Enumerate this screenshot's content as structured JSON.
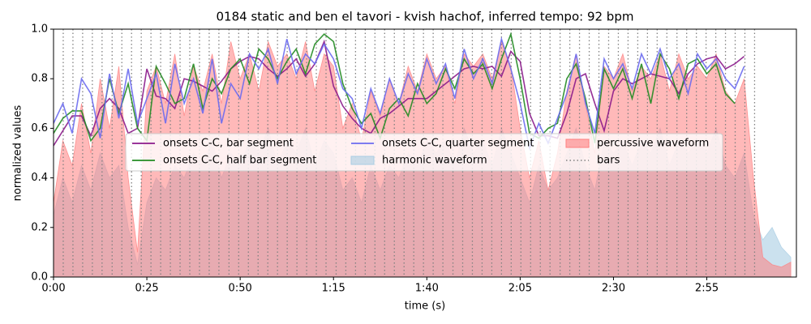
{
  "chart_data": {
    "type": "line",
    "title": "0184 static and ben el tavori - kvish hachof, inferred tempo: 92 bpm",
    "xlabel": "time (s)",
    "ylabel": "normalized values",
    "xlim": [
      0,
      199
    ],
    "ylim": [
      0,
      1
    ],
    "xticks": [
      {
        "value": 0,
        "label": "0:00"
      },
      {
        "value": 25,
        "label": "0:25"
      },
      {
        "value": 50,
        "label": "0:50"
      },
      {
        "value": 75,
        "label": "1:15"
      },
      {
        "value": 100,
        "label": "1:40"
      },
      {
        "value": 125,
        "label": "2:05"
      },
      {
        "value": 150,
        "label": "2:30"
      },
      {
        "value": 175,
        "label": "2:55"
      }
    ],
    "yticks": [
      {
        "value": 0,
        "label": "0.0"
      },
      {
        "value": 0.2,
        "label": "0.2"
      },
      {
        "value": 0.4,
        "label": "0.4"
      },
      {
        "value": 0.6,
        "label": "0.6"
      },
      {
        "value": 0.8,
        "label": "0.8"
      },
      {
        "value": 1,
        "label": "1.0"
      }
    ],
    "legend": "center",
    "x": [
      0,
      2.5,
      5,
      7.5,
      10,
      12.5,
      15,
      17.5,
      20,
      22.5,
      25,
      27.5,
      30,
      32.5,
      35,
      37.5,
      40,
      42.5,
      45,
      47.5,
      50,
      52.5,
      55,
      57.5,
      60,
      62.5,
      65,
      67.5,
      70,
      72.5,
      75,
      77.5,
      80,
      82.5,
      85,
      87.5,
      90,
      92.5,
      95,
      97.5,
      100,
      102.5,
      105,
      107.5,
      110,
      112.5,
      115,
      117.5,
      120,
      122.5,
      125,
      127.5,
      130,
      132.5,
      135,
      137.5,
      140,
      142.5,
      145,
      147.5,
      150,
      152.5,
      155,
      157.5,
      160,
      162.5,
      165,
      167.5,
      170,
      172.5,
      175,
      177.5,
      180,
      182.5,
      185,
      187.5,
      190,
      192.5,
      195,
      197.5
    ],
    "series": [
      {
        "name": "onsets C-C, bar segment",
        "color": "#8b1a8b",
        "style": "line",
        "values": [
          0.53,
          0.59,
          0.65,
          0.65,
          0.57,
          0.68,
          0.72,
          0.68,
          0.58,
          0.6,
          0.84,
          0.73,
          0.72,
          0.68,
          0.8,
          0.79,
          0.77,
          0.75,
          0.79,
          0.84,
          0.87,
          0.89,
          0.88,
          0.84,
          0.81,
          0.84,
          0.88,
          0.81,
          0.86,
          0.95,
          0.77,
          0.69,
          0.64,
          0.6,
          0.58,
          0.64,
          0.66,
          0.69,
          0.72,
          0.72,
          0.72,
          0.75,
          0.78,
          0.81,
          0.84,
          0.85,
          0.84,
          0.85,
          0.81,
          0.91,
          0.87,
          0.66,
          0.57,
          0.57,
          0.56,
          0.66,
          0.8,
          0.82,
          0.7,
          0.59,
          0.75,
          0.8,
          0.78,
          0.8,
          0.82,
          0.81,
          0.8,
          0.74,
          0.82,
          0.86,
          0.88,
          0.89,
          0.84,
          0.86,
          0.89,
          null,
          null,
          null,
          null,
          null
        ]
      },
      {
        "name": "onsets C-C, half bar segment",
        "color": "#228b22",
        "style": "line",
        "values": [
          0.58,
          0.64,
          0.67,
          0.67,
          0.55,
          0.6,
          0.8,
          0.66,
          0.78,
          0.6,
          0.55,
          0.85,
          0.78,
          0.7,
          0.72,
          0.86,
          0.68,
          0.8,
          0.74,
          0.84,
          0.88,
          0.78,
          0.92,
          0.88,
          0.8,
          0.87,
          0.92,
          0.82,
          0.94,
          0.98,
          0.95,
          0.78,
          0.68,
          0.62,
          0.66,
          0.56,
          0.68,
          0.72,
          0.65,
          0.78,
          0.7,
          0.74,
          0.84,
          0.76,
          0.88,
          0.82,
          0.86,
          0.76,
          0.88,
          0.98,
          0.8,
          0.58,
          0.56,
          0.6,
          0.62,
          0.8,
          0.86,
          0.72,
          0.54,
          0.84,
          0.76,
          0.84,
          0.72,
          0.86,
          0.7,
          0.9,
          0.84,
          0.72,
          0.86,
          0.88,
          0.82,
          0.86,
          0.74,
          0.7,
          null,
          null,
          null,
          null,
          null,
          null
        ]
      },
      {
        "name": "onsets C-C, quarter segment",
        "color": "#6b6bef",
        "style": "line",
        "values": [
          0.62,
          0.7,
          0.58,
          0.8,
          0.74,
          0.56,
          0.82,
          0.64,
          0.84,
          0.62,
          0.72,
          0.82,
          0.62,
          0.86,
          0.7,
          0.8,
          0.66,
          0.88,
          0.62,
          0.78,
          0.72,
          0.9,
          0.84,
          0.92,
          0.78,
          0.96,
          0.82,
          0.9,
          0.86,
          0.94,
          0.88,
          0.76,
          0.72,
          0.6,
          0.76,
          0.66,
          0.8,
          0.7,
          0.82,
          0.74,
          0.88,
          0.78,
          0.86,
          0.72,
          0.92,
          0.8,
          0.88,
          0.78,
          0.96,
          0.84,
          0.7,
          0.52,
          0.62,
          0.54,
          0.64,
          0.74,
          0.9,
          0.7,
          0.58,
          0.88,
          0.8,
          0.86,
          0.76,
          0.9,
          0.82,
          0.92,
          0.8,
          0.86,
          0.74,
          0.9,
          0.84,
          0.88,
          0.8,
          0.76,
          0.85,
          null,
          null,
          null,
          null,
          null
        ]
      },
      {
        "name": "harmonic waveform",
        "color": "#a9cde3",
        "style": "area",
        "values": [
          0.25,
          0.4,
          0.3,
          0.45,
          0.35,
          0.5,
          0.4,
          0.45,
          0.2,
          0.05,
          0.3,
          0.4,
          0.35,
          0.45,
          0.4,
          0.5,
          0.45,
          0.55,
          0.4,
          0.5,
          0.45,
          0.55,
          0.5,
          0.6,
          0.45,
          0.55,
          0.5,
          0.6,
          0.45,
          0.55,
          0.5,
          0.35,
          0.4,
          0.3,
          0.45,
          0.35,
          0.45,
          0.4,
          0.5,
          0.45,
          0.55,
          0.5,
          0.55,
          0.45,
          0.6,
          0.5,
          0.55,
          0.45,
          0.6,
          0.5,
          0.4,
          0.3,
          0.45,
          0.35,
          0.4,
          0.5,
          0.6,
          0.45,
          0.35,
          0.55,
          0.5,
          0.55,
          0.45,
          0.55,
          0.5,
          0.6,
          0.45,
          0.55,
          0.5,
          0.55,
          0.5,
          0.6,
          0.45,
          0.4,
          0.5,
          0.25,
          0.15,
          0.2,
          0.12,
          0.08
        ]
      },
      {
        "name": "percussive waveform",
        "color": "#ff7f7f",
        "style": "area",
        "values": [
          0.3,
          0.55,
          0.45,
          0.7,
          0.5,
          0.8,
          0.6,
          0.85,
          0.4,
          0.1,
          0.75,
          0.85,
          0.7,
          0.9,
          0.65,
          0.85,
          0.75,
          0.9,
          0.7,
          0.95,
          0.8,
          0.9,
          0.75,
          0.95,
          0.85,
          0.9,
          0.8,
          0.95,
          0.75,
          0.9,
          0.85,
          0.6,
          0.7,
          0.55,
          0.75,
          0.65,
          0.8,
          0.7,
          0.85,
          0.75,
          0.9,
          0.8,
          0.85,
          0.7,
          0.9,
          0.85,
          0.9,
          0.8,
          0.95,
          0.85,
          0.6,
          0.4,
          0.55,
          0.35,
          0.5,
          0.75,
          0.9,
          0.7,
          0.5,
          0.85,
          0.8,
          0.9,
          0.75,
          0.85,
          0.8,
          0.9,
          0.75,
          0.9,
          0.8,
          0.85,
          0.8,
          0.9,
          0.75,
          0.7,
          0.8,
          0.4,
          0.08,
          0.05,
          0.04,
          0.06
        ]
      },
      {
        "name": "bars",
        "color": "#808080",
        "style": "vlines",
        "x": [
          2.6,
          5.2,
          7.8,
          10.4,
          13.0,
          15.7,
          18.3,
          20.9,
          23.5,
          26.1,
          28.7,
          31.3,
          33.9,
          36.5,
          39.1,
          41.7,
          44.3,
          47.0,
          49.6,
          52.2,
          54.8,
          57.4,
          60.0,
          62.6,
          65.2,
          67.8,
          70.4,
          73.0,
          75.7,
          78.3,
          80.9,
          83.5,
          86.1,
          88.7,
          91.3,
          93.9,
          96.5,
          99.1,
          101.7,
          104.3,
          107.0,
          109.6,
          112.2,
          114.8,
          117.4,
          120.0,
          122.6,
          125.2,
          127.8,
          130.4,
          133.0,
          135.7,
          138.3,
          140.9,
          143.5,
          146.1,
          148.7,
          151.3,
          153.9,
          156.5,
          159.1,
          161.7,
          164.3,
          167.0,
          169.6,
          172.2,
          174.8,
          177.4,
          180.0,
          182.6,
          185.2,
          187.8
        ]
      }
    ]
  }
}
